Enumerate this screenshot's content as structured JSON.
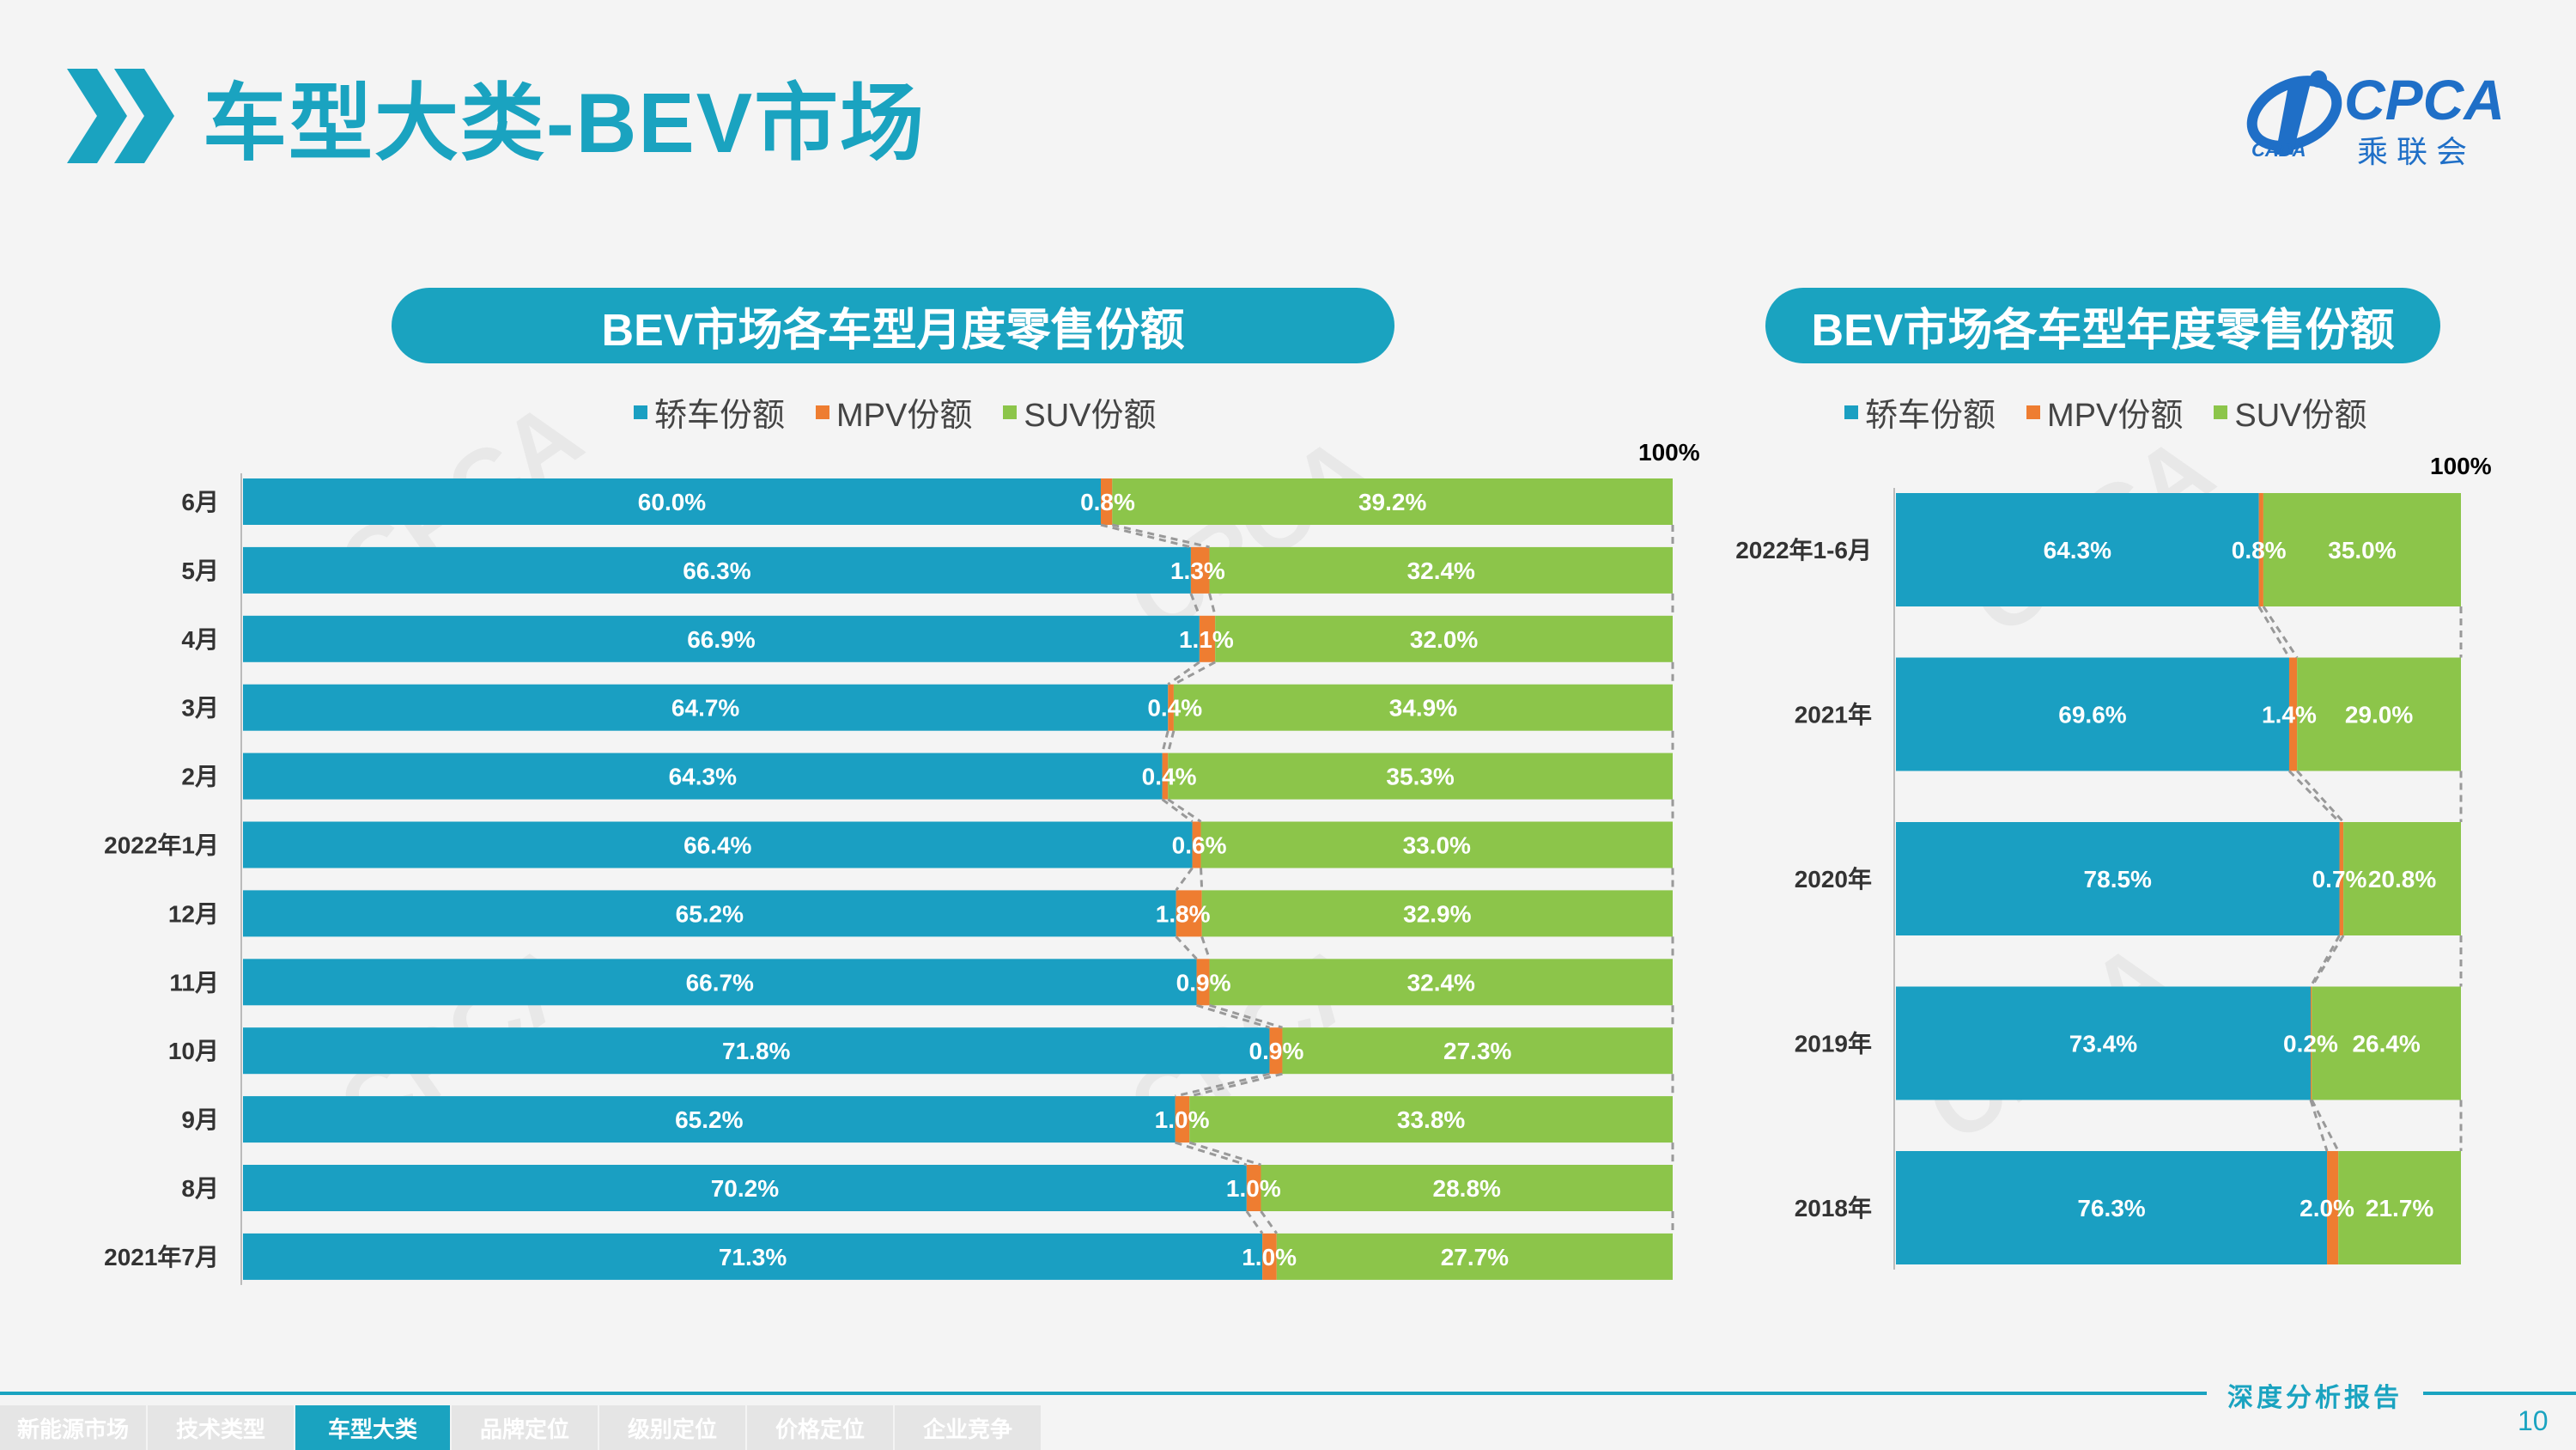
{
  "page": {
    "title": "车型大类-BEV市场",
    "logo_text": "CPCA",
    "logo_sub": "乘联会",
    "logo_sub2": "CADA",
    "footer_tagline": "深度分析报告",
    "page_number": "10",
    "nav_tabs": [
      {
        "label": "新能源市场",
        "active": false
      },
      {
        "label": "技术类型",
        "active": false
      },
      {
        "label": "车型大类",
        "active": true
      },
      {
        "label": "品牌定位",
        "active": false
      },
      {
        "label": "级别定位",
        "active": false
      },
      {
        "label": "价格定位",
        "active": false
      },
      {
        "label": "企业竞争",
        "active": false
      }
    ],
    "colors": {
      "accent": "#1aa3c0",
      "sedan": "#1a9fc2",
      "mpv": "#ee7d31",
      "suv": "#8cc54a"
    }
  },
  "chart_data": [
    {
      "type": "bar",
      "orientation": "horizontal-stacked-100",
      "title": "BEV市场各车型月度零售份额",
      "axis_label_max": "100%",
      "categories": [
        "6月",
        "5月",
        "4月",
        "3月",
        "2月",
        "2022年1月",
        "12月",
        "11月",
        "10月",
        "9月",
        "8月",
        "2021年7月"
      ],
      "series": [
        {
          "name": "轿车份额",
          "values": [
            60.0,
            66.3,
            66.9,
            64.7,
            64.3,
            66.4,
            65.2,
            66.7,
            71.8,
            65.2,
            70.2,
            71.3
          ],
          "labels": [
            "60.0%",
            "66.3%",
            "66.9%",
            "64.7%",
            "64.3%",
            "66.4%",
            "65.2%",
            "66.7%",
            "71.8%",
            "65.2%",
            "70.2%",
            "71.3%"
          ]
        },
        {
          "name": "MPV份额",
          "values": [
            0.8,
            1.3,
            1.1,
            0.4,
            0.4,
            0.6,
            1.8,
            0.9,
            0.9,
            1.0,
            1.0,
            1.0
          ],
          "labels": [
            "0.8%",
            "1.3%",
            "1.1%",
            "0.4%",
            "0.4%",
            "0.6%",
            "1.8%",
            "0.9%",
            "0.9%",
            "1.0%",
            "1.0%",
            "1.0%"
          ]
        },
        {
          "name": "SUV份额",
          "values": [
            39.2,
            32.4,
            32.0,
            34.9,
            35.3,
            33.0,
            32.9,
            32.4,
            27.3,
            33.8,
            28.8,
            27.7
          ],
          "labels": [
            "39.2%",
            "32.4%",
            "32.0%",
            "34.9%",
            "35.3%",
            "33.0%",
            "32.9%",
            "32.4%",
            "27.3%",
            "33.8%",
            "28.8%",
            "27.7%"
          ]
        }
      ],
      "legend": "top-center",
      "series_lines": "dashed"
    },
    {
      "type": "bar",
      "orientation": "horizontal-stacked-100",
      "title": "BEV市场各车型年度零售份额",
      "axis_label_max": "100%",
      "categories": [
        "2022年1-6月",
        "2021年",
        "2020年",
        "2019年",
        "2018年"
      ],
      "series": [
        {
          "name": "轿车份额",
          "values": [
            64.3,
            69.6,
            78.5,
            73.4,
            76.3
          ],
          "labels": [
            "64.3%",
            "69.6%",
            "78.5%",
            "73.4%",
            "76.3%"
          ]
        },
        {
          "name": "MPV份额",
          "values": [
            0.8,
            1.4,
            0.7,
            0.2,
            2.0
          ],
          "labels": [
            "0.8%",
            "1.4%",
            "0.7%",
            "0.2%",
            "2.0%"
          ]
        },
        {
          "name": "SUV份额",
          "values": [
            35.0,
            29.0,
            20.8,
            26.4,
            21.7
          ],
          "labels": [
            "35.0%",
            "29.0%",
            "20.8%",
            "26.4%",
            "21.7%"
          ]
        }
      ],
      "legend": "top-center",
      "series_lines": "dashed"
    }
  ]
}
